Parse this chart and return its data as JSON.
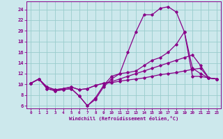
{
  "xlabel": "Windchill (Refroidissement éolien,°C)",
  "bg_color": "#cce8ec",
  "grid_color": "#99cccc",
  "line_color": "#880088",
  "xlim": [
    -0.5,
    23.5
  ],
  "ylim": [
    5.5,
    25.5
  ],
  "xticks": [
    0,
    1,
    2,
    3,
    4,
    5,
    6,
    7,
    8,
    9,
    10,
    11,
    12,
    13,
    14,
    15,
    16,
    17,
    18,
    19,
    20,
    21,
    22,
    23
  ],
  "yticks": [
    6,
    8,
    10,
    12,
    14,
    16,
    18,
    20,
    22,
    24
  ],
  "line1_x": [
    0,
    1,
    2,
    3,
    4,
    5,
    6,
    7,
    8,
    9,
    10,
    11,
    12,
    13,
    14,
    15,
    16,
    17,
    18,
    19,
    20,
    21,
    22,
    23
  ],
  "line1_y": [
    10.2,
    11.0,
    9.2,
    8.8,
    9.0,
    9.2,
    7.8,
    6.0,
    7.2,
    9.5,
    11.0,
    12.0,
    16.0,
    19.8,
    23.0,
    23.0,
    24.2,
    24.5,
    23.5,
    19.8,
    11.5,
    11.5,
    11.2,
    11.0
  ],
  "line2_x": [
    0,
    1,
    2,
    3,
    4,
    5,
    6,
    7,
    8,
    9,
    10,
    11,
    12,
    13,
    14,
    15,
    16,
    17,
    18,
    19,
    20,
    21,
    22,
    23
  ],
  "line2_y": [
    10.2,
    11.0,
    9.2,
    8.8,
    9.0,
    9.2,
    7.8,
    6.0,
    7.5,
    9.8,
    11.5,
    12.0,
    12.2,
    12.5,
    13.5,
    14.5,
    15.0,
    16.0,
    17.5,
    19.8,
    13.0,
    12.0,
    11.2,
    11.0
  ],
  "line3_x": [
    0,
    1,
    2,
    3,
    4,
    5,
    6,
    7,
    8,
    9,
    10,
    11,
    12,
    13,
    14,
    15,
    16,
    17,
    18,
    19,
    20,
    21,
    22,
    23
  ],
  "line3_y": [
    10.2,
    11.0,
    9.5,
    9.0,
    9.2,
    9.5,
    9.0,
    9.2,
    9.8,
    10.2,
    10.5,
    11.0,
    11.5,
    12.0,
    12.5,
    13.0,
    13.5,
    14.0,
    14.5,
    15.0,
    15.5,
    13.5,
    11.2,
    11.0
  ],
  "line4_x": [
    0,
    1,
    2,
    3,
    4,
    5,
    6,
    7,
    8,
    9,
    10,
    11,
    12,
    13,
    14,
    15,
    16,
    17,
    18,
    19,
    20,
    21,
    22,
    23
  ],
  "line4_y": [
    10.2,
    11.0,
    9.5,
    9.0,
    9.2,
    9.5,
    9.0,
    9.2,
    9.8,
    10.2,
    10.3,
    10.6,
    10.8,
    11.0,
    11.2,
    11.5,
    11.8,
    12.0,
    12.2,
    12.5,
    12.8,
    13.0,
    11.2,
    11.0
  ]
}
